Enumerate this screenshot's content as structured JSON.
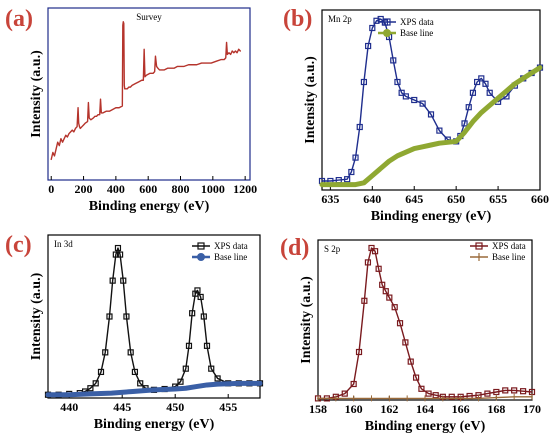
{
  "chart_data": [
    {
      "panel": "(a)",
      "type": "line",
      "title": "Survey",
      "xlabel": "Binding energy (eV)",
      "ylabel": "Intensity (a.u.)",
      "xlim": [
        -20,
        1230
      ],
      "ylim": [
        0,
        100
      ],
      "xticks": [
        0,
        200,
        400,
        600,
        800,
        1000,
        1200
      ],
      "frame_color": "#1f2c8a",
      "series": [
        {
          "color": "#b5342c",
          "x": [
            0,
            10,
            20,
            30,
            40,
            50,
            60,
            70,
            80,
            90,
            100,
            110,
            120,
            130,
            140,
            150,
            160,
            166,
            170,
            175,
            180,
            190,
            200,
            210,
            225,
            230,
            235,
            245,
            260,
            270,
            280,
            290,
            300,
            305,
            310,
            320,
            340,
            360,
            380,
            400,
            420,
            440,
            443,
            446,
            449,
            452,
            455,
            470,
            480,
            490,
            500,
            520,
            540,
            560,
            570,
            575,
            580,
            590,
            610,
            630,
            640,
            645,
            652,
            660,
            670,
            680,
            700,
            720,
            740,
            760,
            780,
            800,
            820,
            850,
            880,
            900,
            930,
            960,
            990,
            1020,
            1050,
            1070,
            1080,
            1085,
            1090,
            1100,
            1110,
            1120,
            1130,
            1140,
            1150,
            1160,
            1170
          ],
          "y": [
            12,
            16,
            14,
            18,
            22,
            20,
            24,
            22,
            24,
            26,
            25,
            27,
            28,
            29,
            28,
            30,
            31,
            42,
            33,
            31,
            30,
            31,
            32,
            33,
            34,
            45,
            36,
            35,
            36,
            37,
            37,
            38,
            38,
            47,
            39,
            39,
            40,
            40,
            41,
            42,
            42,
            43,
            90,
            92,
            91,
            55,
            53,
            53,
            54,
            54,
            55,
            56,
            57,
            58,
            58,
            76,
            60,
            61,
            62,
            62,
            63,
            72,
            66,
            65,
            64,
            64,
            64,
            65,
            65,
            65,
            66,
            66,
            66,
            67,
            67,
            67,
            68,
            68,
            68,
            69,
            70,
            70,
            71,
            80,
            73,
            74,
            73,
            75,
            74,
            75,
            74,
            76,
            75
          ]
        }
      ]
    },
    {
      "panel": "(b)",
      "type": "line",
      "title": "Mn 2p",
      "xlabel": "Binding energy (eV)",
      "ylabel": "Intensity (a.u.)",
      "xlim": [
        634,
        660
      ],
      "ylim": [
        0,
        100
      ],
      "xticks": [
        635,
        640,
        645,
        650,
        655,
        660
      ],
      "legend": "top-right",
      "series": [
        {
          "name": "XPS data",
          "color": "#1f2e8e",
          "marker": "square",
          "x": [
            634,
            635,
            636,
            637,
            637.5,
            638,
            638.5,
            639,
            639.5,
            640,
            640.5,
            641,
            641.5,
            642,
            642.5,
            643,
            643.5,
            644,
            645,
            646,
            647,
            648,
            649,
            650,
            650.5,
            651,
            651.5,
            652,
            652.5,
            653,
            653.5,
            654,
            655,
            656,
            657,
            658,
            659,
            660
          ],
          "y": [
            5,
            5,
            5.5,
            6,
            10,
            18,
            35,
            60,
            80,
            90,
            94,
            95,
            93,
            85,
            72,
            60,
            54,
            52,
            50,
            48,
            42,
            33,
            28,
            27,
            30,
            37,
            46,
            54,
            60,
            62,
            59,
            54,
            49,
            52,
            58,
            62,
            65,
            68
          ]
        },
        {
          "name": "Base line",
          "color": "#8fa832",
          "marker": "circle",
          "x": [
            634,
            636,
            638,
            639,
            640,
            641,
            642,
            643,
            644,
            645,
            646,
            647,
            648,
            649,
            650,
            651,
            652,
            653,
            654,
            655,
            656,
            657,
            658,
            659,
            660
          ],
          "y": [
            3,
            3,
            3,
            4,
            8,
            12,
            16,
            19,
            21,
            23,
            24,
            25,
            26,
            26.5,
            27,
            32,
            38,
            43,
            47,
            51,
            55,
            59,
            62,
            65,
            68
          ]
        }
      ]
    },
    {
      "panel": "(c)",
      "type": "line",
      "title": "In 3d",
      "xlabel": "Binding energy (eV)",
      "ylabel": "Intensity (a.u.)",
      "xlim": [
        438,
        458
      ],
      "ylim": [
        0,
        100
      ],
      "xticks": [
        440,
        445,
        450,
        455
      ],
      "legend": "top-right",
      "series": [
        {
          "name": "XPS data",
          "color": "#111111",
          "marker": "square",
          "x": [
            438,
            439,
            440,
            441,
            441.5,
            442,
            442.5,
            443,
            443.4,
            443.8,
            444.1,
            444.4,
            444.6,
            444.8,
            445.1,
            445.4,
            445.8,
            446.2,
            446.7,
            447.2,
            448,
            449,
            450,
            450.5,
            451,
            451.3,
            451.6,
            451.9,
            452.1,
            452.4,
            452.7,
            453,
            453.4,
            454,
            455,
            456,
            457,
            458
          ],
          "y": [
            2,
            2,
            2.5,
            3,
            4,
            6,
            9,
            16,
            28,
            50,
            72,
            88,
            92,
            88,
            72,
            50,
            28,
            16,
            9,
            6,
            5,
            5.5,
            7,
            10,
            18,
            32,
            52,
            64,
            66,
            62,
            50,
            32,
            18,
            12,
            9,
            9,
            9,
            9
          ]
        },
        {
          "name": "Base line",
          "color": "#3a5fa6",
          "marker": "circle",
          "x": [
            438,
            440,
            442,
            444,
            446,
            448,
            450,
            451,
            452,
            453,
            454,
            456,
            458
          ],
          "y": [
            2,
            2,
            2.5,
            3,
            4,
            5,
            5.5,
            6,
            7,
            8,
            8.5,
            9,
            9
          ]
        }
      ]
    },
    {
      "panel": "(d)",
      "type": "line",
      "title": "S 2p",
      "xlabel": "Binding energy (eV)",
      "ylabel": "Intensity (a.u.)",
      "xlim": [
        158,
        170
      ],
      "ylim": [
        0,
        100
      ],
      "xticks": [
        158,
        160,
        162,
        164,
        166,
        168,
        170
      ],
      "legend": "top-right",
      "series": [
        {
          "name": "XPS data",
          "color": "#7a1a1e",
          "marker": "square",
          "x": [
            158,
            158.5,
            159,
            159.5,
            160,
            160.3,
            160.6,
            160.8,
            161,
            161.2,
            161.4,
            161.6,
            161.8,
            162,
            162.3,
            162.6,
            162.9,
            163.2,
            163.5,
            163.8,
            164.2,
            164.6,
            165,
            165.5,
            166,
            166.5,
            167,
            167.5,
            168,
            168.5,
            169,
            169.5,
            170
          ],
          "y": [
            1,
            1,
            2,
            4,
            10,
            30,
            62,
            86,
            95,
            93,
            82,
            72,
            68,
            64,
            58,
            48,
            36,
            24,
            14,
            7,
            4,
            3,
            2,
            2,
            2,
            2.5,
            3,
            4,
            5,
            6,
            6,
            5.5,
            5
          ]
        },
        {
          "name": "Base line",
          "color": "#9a6a3a",
          "marker": "tick",
          "x": [
            158,
            159,
            160,
            161,
            162,
            163,
            164,
            165,
            166,
            167,
            168,
            169,
            170
          ],
          "y": [
            1,
            1,
            1,
            1,
            1,
            1,
            1,
            1,
            1,
            1,
            1.5,
            2,
            2
          ]
        }
      ]
    }
  ]
}
